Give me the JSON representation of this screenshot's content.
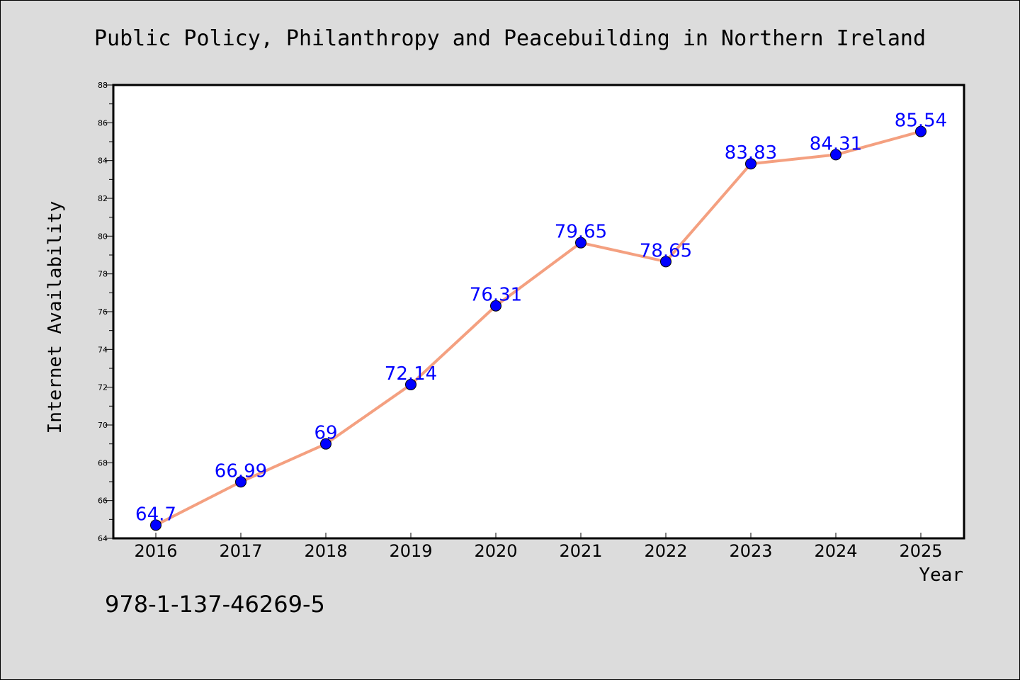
{
  "chart_data": {
    "type": "line",
    "title": "Public Policy, Philanthropy and Peacebuilding in Northern Ireland",
    "xlabel": "Year",
    "ylabel": "Internet Availability",
    "categories": [
      "2016",
      "2017",
      "2018",
      "2019",
      "2020",
      "2021",
      "2022",
      "2023",
      "2024",
      "2025"
    ],
    "series": [
      {
        "values": [
          64.7,
          66.99,
          69,
          72.14,
          76.31,
          79.65,
          78.65,
          83.83,
          84.31,
          85.54
        ],
        "labels": [
          "64.7",
          "66.99",
          "69",
          "72.14",
          "76.31",
          "79.65",
          "78.65",
          "83.83",
          "84.31",
          "85.54"
        ]
      }
    ],
    "ylim": [
      64,
      88
    ],
    "yticks": [
      "64",
      "66",
      "68",
      "70",
      "72",
      "74",
      "76",
      "78",
      "80",
      "82",
      "84",
      "86",
      "88"
    ],
    "grid": false,
    "colors": {
      "line": "#f4a080",
      "marker": "#0000ff",
      "label": "#0000ff",
      "background": "#dcdcdc",
      "plot_area": "#ffffff"
    }
  },
  "footer": {
    "isbn": "978-1-137-46269-5"
  }
}
